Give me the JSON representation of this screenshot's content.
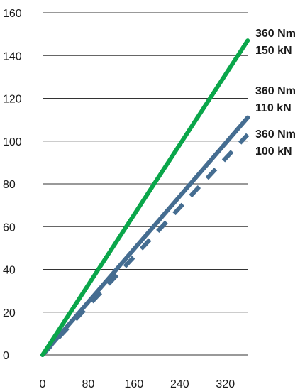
{
  "chart_data": {
    "type": "line",
    "title": "",
    "xlabel": "",
    "ylabel": "",
    "xlim": [
      0,
      360
    ],
    "ylim": [
      0,
      160
    ],
    "xticks": [
      0,
      80,
      160,
      240,
      320
    ],
    "yticks": [
      0,
      20,
      40,
      60,
      80,
      100,
      120,
      140,
      160
    ],
    "grid": "horizontal",
    "series": [
      {
        "color": "#0aa64a",
        "dash": "solid",
        "x": [
          0,
          359
        ],
        "y": [
          0,
          147
        ],
        "annotation": [
          "360 Nm",
          "150 kN"
        ]
      },
      {
        "color": "#456d91",
        "dash": "solid",
        "x": [
          0,
          359
        ],
        "y": [
          0,
          111
        ],
        "annotation": [
          "360 Nm",
          "110 kN"
        ]
      },
      {
        "color": "#456d91",
        "dash": "dashed",
        "x": [
          0,
          359
        ],
        "y": [
          0,
          103
        ],
        "annotation": [
          "360 Nm",
          "100 kN"
        ]
      }
    ]
  }
}
